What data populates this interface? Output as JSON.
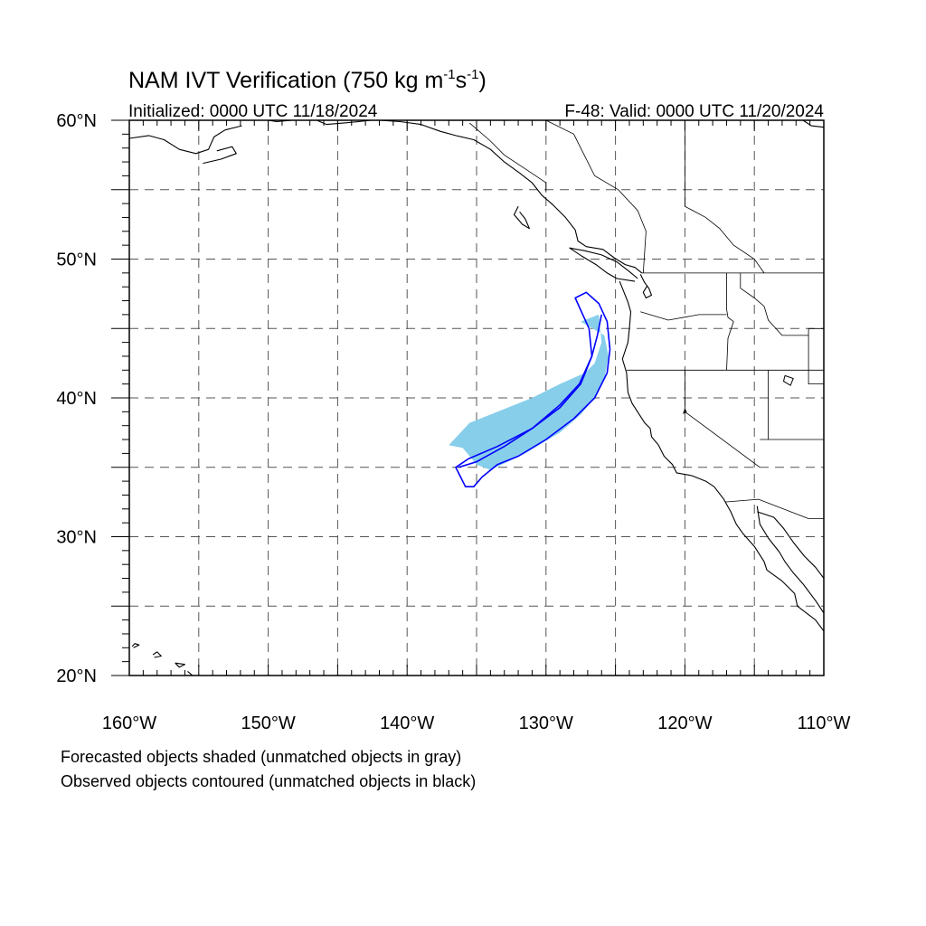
{
  "title": {
    "main": "NAM IVT Verification (750 kg m",
    "sup1": "-1",
    "mid": "s",
    "sup2": "-1",
    "close": ")"
  },
  "subtitle_left": "Initialized: 0000 UTC 11/18/2024",
  "subtitle_right": "F-48: Valid: 0000 UTC 11/20/2024",
  "map": {
    "lon_range": [
      -160,
      -110
    ],
    "lat_range": [
      20,
      60
    ],
    "grid": "dashed",
    "lon_ticks": [
      {
        "value": -160,
        "label": "160°W"
      },
      {
        "value": -150,
        "label": "150°W"
      },
      {
        "value": -140,
        "label": "140°W"
      },
      {
        "value": -130,
        "label": "130°W"
      },
      {
        "value": -120,
        "label": "120°W"
      },
      {
        "value": -110,
        "label": "110°W"
      }
    ],
    "lat_ticks": [
      {
        "value": 20,
        "label": "20°N"
      },
      {
        "value": 30,
        "label": "30°N"
      },
      {
        "value": 40,
        "label": "40°N"
      },
      {
        "value": 50,
        "label": "50°N"
      },
      {
        "value": 60,
        "label": "60°N"
      }
    ],
    "forecast_color": "#87ceeb",
    "observed_color": "#0000ff",
    "forecast_object": [
      [
        -127.5,
        45.5
      ],
      [
        -126.2,
        46.0
      ],
      [
        -126.0,
        44.0
      ],
      [
        -126.5,
        42.5
      ],
      [
        -127.2,
        41.8
      ],
      [
        -129.0,
        41.0
      ],
      [
        -131.0,
        40.0
      ],
      [
        -133.5,
        39.0
      ],
      [
        -135.5,
        38.2
      ],
      [
        -137.0,
        36.6
      ],
      [
        -136.0,
        36.4
      ],
      [
        -135.0,
        35.2
      ],
      [
        -134.0,
        34.8
      ],
      [
        -131.5,
        36.0
      ],
      [
        -129.0,
        37.5
      ],
      [
        -127.5,
        38.8
      ],
      [
        -126.5,
        40.0
      ],
      [
        -125.8,
        41.3
      ],
      [
        -125.5,
        43.0
      ],
      [
        -125.8,
        44.5
      ]
    ],
    "observed_object": [
      [
        -127.9,
        47.2
      ],
      [
        -127.1,
        47.6
      ],
      [
        -126.2,
        46.8
      ],
      [
        -125.6,
        45.5
      ],
      [
        -125.4,
        43.5
      ],
      [
        -125.6,
        41.8
      ],
      [
        -126.5,
        40.0
      ],
      [
        -128.0,
        38.5
      ],
      [
        -130.0,
        37.0
      ],
      [
        -132.0,
        35.8
      ],
      [
        -133.5,
        35.2
      ],
      [
        -134.6,
        34.3
      ],
      [
        -135.2,
        33.6
      ],
      [
        -135.8,
        33.6
      ],
      [
        -136.2,
        34.4
      ],
      [
        -136.5,
        35.0
      ],
      [
        -135.6,
        35.6
      ],
      [
        -133.5,
        36.5
      ],
      [
        -131.0,
        37.8
      ],
      [
        -129.0,
        39.3
      ],
      [
        -127.5,
        41.0
      ],
      [
        -126.7,
        43.0
      ],
      [
        -126.9,
        45.0
      ]
    ],
    "observed_axis": [
      [
        -126.0,
        46.0
      ],
      [
        -126.3,
        44.5
      ],
      [
        -126.7,
        43.0
      ],
      [
        -127.6,
        41.0
      ],
      [
        -129.0,
        39.5
      ],
      [
        -131.0,
        37.8
      ],
      [
        -133.0,
        36.5
      ],
      [
        -135.0,
        35.4
      ],
      [
        -136.3,
        35.0
      ]
    ],
    "coastlines": [
      [
        [
          -124.7,
          48.4
        ],
        [
          -124.1,
          46.9
        ],
        [
          -123.9,
          46.2
        ],
        [
          -124.0,
          45.0
        ],
        [
          -124.1,
          44.0
        ],
        [
          -124.5,
          42.8
        ],
        [
          -124.2,
          41.8
        ],
        [
          -124.1,
          40.4
        ],
        [
          -123.8,
          39.6
        ],
        [
          -122.9,
          38.2
        ],
        [
          -122.5,
          37.8
        ],
        [
          -122.4,
          37.2
        ],
        [
          -121.9,
          36.6
        ],
        [
          -121.5,
          35.8
        ],
        [
          -120.9,
          35.2
        ],
        [
          -120.6,
          34.6
        ],
        [
          -119.5,
          34.4
        ],
        [
          -118.5,
          34.0
        ],
        [
          -117.9,
          33.6
        ],
        [
          -117.2,
          32.7
        ],
        [
          -116.7,
          31.8
        ],
        [
          -116.3,
          30.9
        ],
        [
          -115.8,
          30.2
        ],
        [
          -115.0,
          29.3
        ],
        [
          -114.3,
          28.2
        ],
        [
          -114.1,
          27.6
        ],
        [
          -113.0,
          26.8
        ],
        [
          -112.1,
          25.9
        ],
        [
          -111.9,
          25.0
        ],
        [
          -110.6,
          24.0
        ],
        [
          -110.0,
          23.2
        ]
      ],
      [
        [
          -114.8,
          32.2
        ],
        [
          -114.6,
          30.9
        ],
        [
          -114.0,
          29.9
        ],
        [
          -113.2,
          28.9
        ],
        [
          -112.8,
          28.2
        ],
        [
          -112.2,
          27.4
        ],
        [
          -111.5,
          26.6
        ],
        [
          -110.6,
          25.4
        ],
        [
          -110.0,
          24.5
        ]
      ],
      [
        [
          -110.0,
          27.0
        ],
        [
          -110.6,
          27.8
        ],
        [
          -111.4,
          28.6
        ],
        [
          -112.2,
          29.6
        ],
        [
          -112.9,
          30.6
        ],
        [
          -113.6,
          31.4
        ],
        [
          -114.8,
          31.8
        ]
      ],
      [
        [
          -123.2,
          48.9
        ],
        [
          -122.9,
          48.3
        ],
        [
          -122.6,
          47.9
        ],
        [
          -122.4,
          47.4
        ],
        [
          -122.8,
          47.2
        ],
        [
          -123.0,
          47.6
        ],
        [
          -122.7,
          48.1
        ]
      ],
      [
        [
          -123.1,
          49.0
        ],
        [
          -123.6,
          49.4
        ],
        [
          -124.3,
          49.6
        ],
        [
          -125.1,
          50.1
        ],
        [
          -125.9,
          50.7
        ],
        [
          -127.1,
          50.9
        ],
        [
          -127.7,
          51.3
        ],
        [
          -127.9,
          52.1
        ],
        [
          -128.6,
          53.0
        ],
        [
          -129.5,
          53.9
        ],
        [
          -130.3,
          54.6
        ],
        [
          -131.0,
          55.5
        ],
        [
          -131.9,
          56.2
        ],
        [
          -133.0,
          57.0
        ],
        [
          -134.0,
          57.9
        ],
        [
          -135.2,
          58.6
        ],
        [
          -136.5,
          58.9
        ],
        [
          -137.6,
          59.2
        ],
        [
          -139.0,
          59.7
        ],
        [
          -140.5,
          59.9
        ],
        [
          -142.0,
          60.0
        ]
      ],
      [
        [
          -123.6,
          48.4
        ],
        [
          -124.9,
          48.6
        ],
        [
          -125.6,
          49.0
        ],
        [
          -126.4,
          49.6
        ],
        [
          -127.4,
          50.2
        ],
        [
          -128.3,
          50.8
        ],
        [
          -127.2,
          50.6
        ],
        [
          -126.0,
          50.3
        ],
        [
          -124.9,
          49.8
        ],
        [
          -124.0,
          49.1
        ],
        [
          -123.4,
          48.6
        ]
      ],
      [
        [
          -132.0,
          53.8
        ],
        [
          -132.3,
          53.2
        ],
        [
          -131.7,
          52.5
        ],
        [
          -131.2,
          52.2
        ],
        [
          -131.5,
          52.9
        ],
        [
          -131.9,
          53.4
        ]
      ],
      [
        [
          -160.0,
          58.7
        ],
        [
          -158.6,
          58.9
        ],
        [
          -157.5,
          58.6
        ],
        [
          -156.4,
          57.9
        ],
        [
          -155.2,
          57.6
        ],
        [
          -154.3,
          57.9
        ],
        [
          -153.9,
          58.8
        ],
        [
          -153.1,
          59.3
        ],
        [
          -151.9,
          59.6
        ]
      ],
      [
        [
          -154.7,
          56.9
        ],
        [
          -153.4,
          57.2
        ],
        [
          -152.3,
          57.6
        ],
        [
          -152.6,
          58.1
        ],
        [
          -153.7,
          57.8
        ]
      ],
      [
        [
          -150.0,
          60.0
        ],
        [
          -149.4,
          59.9
        ],
        [
          -148.3,
          60.0
        ]
      ],
      [
        [
          -146.5,
          60.0
        ],
        [
          -145.8,
          59.7
        ],
        [
          -144.6,
          59.8
        ],
        [
          -143.5,
          59.9
        ],
        [
          -142.6,
          60.0
        ]
      ],
      [
        [
          -111.5,
          60.0
        ],
        [
          -110.9,
          59.6
        ],
        [
          -110.0,
          59.5
        ]
      ],
      [
        [
          -155.8,
          20.3
        ],
        [
          -155.0,
          19.6
        ],
        [
          -154.9,
          19.5
        ]
      ],
      [
        [
          -158.2,
          21.3
        ],
        [
          -157.7,
          21.4
        ],
        [
          -158.0,
          21.7
        ],
        [
          -158.3,
          21.5
        ]
      ],
      [
        [
          -159.7,
          22.0
        ],
        [
          -159.3,
          22.2
        ],
        [
          -159.6,
          22.3
        ],
        [
          -159.8,
          22.1
        ]
      ],
      [
        [
          -156.7,
          20.9
        ],
        [
          -156.0,
          20.8
        ],
        [
          -156.4,
          20.6
        ],
        [
          -156.7,
          20.9
        ]
      ]
    ],
    "lakes": [
      [
        [
          -112.8,
          41.6
        ],
        [
          -112.2,
          41.4
        ],
        [
          -112.4,
          40.9
        ],
        [
          -112.9,
          41.2
        ],
        [
          -112.8,
          41.6
        ]
      ],
      [
        [
          -120.0,
          39.2
        ],
        [
          -119.9,
          39.0
        ],
        [
          -120.1,
          38.9
        ],
        [
          -120.0,
          39.2
        ]
      ]
    ],
    "borders": [
      [
        [
          -123.1,
          49.0
        ],
        [
          -110.0,
          49.0
        ]
      ],
      [
        [
          -117.1,
          32.5
        ],
        [
          -114.7,
          32.7
        ],
        [
          -111.1,
          31.3
        ],
        [
          -110.0,
          31.3
        ]
      ],
      [
        [
          -124.2,
          42.0
        ],
        [
          -110.0,
          42.0
        ]
      ],
      [
        [
          -120.0,
          42.0
        ],
        [
          -120.0,
          39.0
        ],
        [
          -114.6,
          35.0
        ]
      ],
      [
        [
          -117.0,
          49.0
        ],
        [
          -117.0,
          46.4
        ],
        [
          -116.9,
          45.8
        ],
        [
          -116.5,
          45.5
        ],
        [
          -116.9,
          44.3
        ],
        [
          -117.0,
          42.0
        ]
      ],
      [
        [
          -123.2,
          46.2
        ],
        [
          -121.2,
          45.6
        ],
        [
          -119.0,
          46.0
        ],
        [
          -117.0,
          46.0
        ]
      ],
      [
        [
          -114.0,
          42.0
        ],
        [
          -114.0,
          37.0
        ]
      ],
      [
        [
          -114.6,
          37.0
        ],
        [
          -110.0,
          37.0
        ]
      ],
      [
        [
          -116.0,
          49.0
        ],
        [
          -116.0,
          47.9
        ],
        [
          -115.0,
          47.2
        ],
        [
          -114.3,
          46.6
        ],
        [
          -114.0,
          45.6
        ],
        [
          -113.0,
          44.5
        ],
        [
          -111.1,
          44.5
        ]
      ],
      [
        [
          -111.1,
          45.0
        ],
        [
          -110.0,
          45.0
        ]
      ],
      [
        [
          -111.1,
          45.0
        ],
        [
          -111.1,
          41.0
        ],
        [
          -110.0,
          41.0
        ]
      ],
      [
        [
          -123.0,
          49.0
        ],
        [
          -122.8,
          52.0
        ],
        [
          -123.4,
          53.5
        ],
        [
          -124.8,
          55.0
        ],
        [
          -126.5,
          56.0
        ],
        [
          -127.5,
          58.0
        ],
        [
          -128.0,
          59.0
        ],
        [
          -130.0,
          60.0
        ]
      ],
      [
        [
          -120.0,
          60.0
        ],
        [
          -120.0,
          53.8
        ],
        [
          -118.5,
          53.0
        ],
        [
          -117.5,
          52.2
        ],
        [
          -116.5,
          51.0
        ],
        [
          -115.0,
          50.0
        ],
        [
          -114.3,
          49.0
        ]
      ],
      [
        [
          -135.5,
          59.8
        ],
        [
          -134.0,
          58.5
        ],
        [
          -133.0,
          57.5
        ],
        [
          -131.5,
          56.5
        ],
        [
          -130.0,
          55.5
        ],
        [
          -130.0,
          54.8
        ]
      ]
    ]
  },
  "notes": {
    "line1": "Forecasted objects shaded (unmatched objects in gray)",
    "line2": "Observed objects contoured (unmatched objects in black)"
  }
}
